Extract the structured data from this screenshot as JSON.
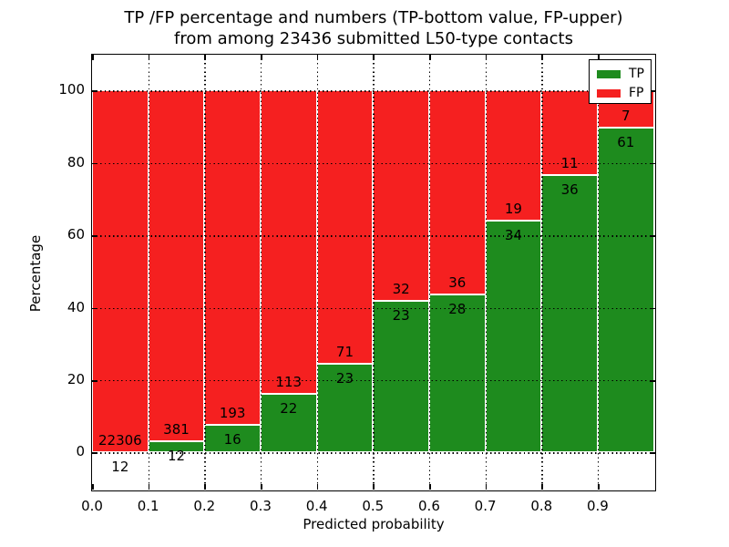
{
  "figure": {
    "title_line1": "TP /FP percentage and numbers (TP-bottom value, FP-upper)",
    "title_line2": "from among 23436 submitted L50-type contacts",
    "background": "#ffffff"
  },
  "chart_data": {
    "type": "bar",
    "stacked": true,
    "title": "TP /FP percentage and numbers (TP-bottom value, FP-upper) from among 23436 submitted L50-type contacts",
    "xlabel": "Predicted probability",
    "ylabel": "Percentage",
    "total_submitted_contacts": 23436,
    "x_tick_labels": [
      "0.0",
      "0.1",
      "0.2",
      "0.3",
      "0.4",
      "0.5",
      "0.6",
      "0.7",
      "0.8",
      "0.9"
    ],
    "y_tick_values": [
      0,
      20,
      40,
      60,
      80,
      100
    ],
    "xlim": [
      0.0,
      1.0
    ],
    "ylim": [
      -10.7,
      110.3
    ],
    "bin_width": 0.1,
    "grid": "dotted",
    "bar_edge_color": "#ffffff",
    "categories": [
      "0.0-0.1",
      "0.1-0.2",
      "0.2-0.3",
      "0.3-0.4",
      "0.4-0.5",
      "0.5-0.6",
      "0.6-0.7",
      "0.7-0.8",
      "0.8-0.9",
      "0.9-1.0"
    ],
    "series": [
      {
        "name": "TP",
        "color": "#1e8b1e",
        "counts": [
          12,
          12,
          16,
          22,
          23,
          23,
          28,
          34,
          36,
          61
        ]
      },
      {
        "name": "FP",
        "color": "#f52020",
        "counts": [
          22306,
          381,
          193,
          113,
          71,
          32,
          36,
          19,
          11,
          7
        ]
      }
    ],
    "bins": [
      {
        "range": "0.0-0.1",
        "tp": 12,
        "fp": 22306,
        "tp_pct": 0.05,
        "fp_pct": 99.95
      },
      {
        "range": "0.1-0.2",
        "tp": 12,
        "fp": 381,
        "tp_pct": 3.05,
        "fp_pct": 96.95
      },
      {
        "range": "0.2-0.3",
        "tp": 16,
        "fp": 193,
        "tp_pct": 7.66,
        "fp_pct": 92.34
      },
      {
        "range": "0.3-0.4",
        "tp": 22,
        "fp": 113,
        "tp_pct": 16.3,
        "fp_pct": 83.7
      },
      {
        "range": "0.4-0.5",
        "tp": 23,
        "fp": 71,
        "tp_pct": 24.47,
        "fp_pct": 75.53
      },
      {
        "range": "0.5-0.6",
        "tp": 23,
        "fp": 32,
        "tp_pct": 41.82,
        "fp_pct": 58.18
      },
      {
        "range": "0.6-0.7",
        "tp": 28,
        "fp": 36,
        "tp_pct": 43.75,
        "fp_pct": 56.25
      },
      {
        "range": "0.7-0.8",
        "tp": 34,
        "fp": 19,
        "tp_pct": 64.15,
        "fp_pct": 35.85
      },
      {
        "range": "0.8-0.9",
        "tp": 36,
        "fp": 11,
        "tp_pct": 76.6,
        "fp_pct": 23.4
      },
      {
        "range": "0.9-1.0",
        "tp": 61,
        "fp": 7,
        "tp_pct": 89.71,
        "fp_pct": 10.29
      }
    ],
    "legend": {
      "position": "upper-right",
      "entries": [
        {
          "label": "TP",
          "color": "#1e8b1e"
        },
        {
          "label": "FP",
          "color": "#f52020"
        }
      ]
    }
  }
}
